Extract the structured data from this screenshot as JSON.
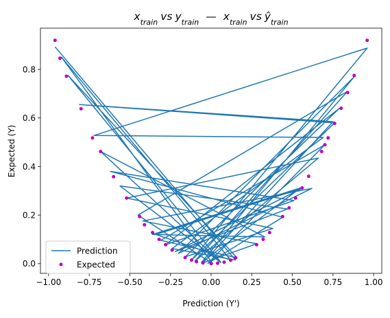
{
  "chart_data": {
    "type": "line",
    "title": "x_train vs y_train — x_train vs ŷ_train",
    "title_parts": {
      "x": "x",
      "train": "train",
      "vs": "vs",
      "y": "y",
      "yhat": "ŷ",
      "sep": "—"
    },
    "xlabel": "Prediction (Y')",
    "ylabel": "Expected (Y)",
    "xlim": [
      -1.05,
      1.05
    ],
    "ylim": [
      -0.04,
      0.97
    ],
    "xticks": [
      -1.0,
      -0.75,
      -0.5,
      -0.25,
      0.0,
      0.25,
      0.5,
      0.75,
      1.0
    ],
    "xtick_labels": [
      "−1.00",
      "−0.75",
      "−0.50",
      "−0.25",
      "0.00",
      "0.25",
      "0.50",
      "0.75",
      "1.00"
    ],
    "yticks": [
      0.0,
      0.2,
      0.4,
      0.6,
      0.8
    ],
    "ytick_labels": [
      "0.0",
      "0.2",
      "0.4",
      "0.6",
      "0.8"
    ],
    "grid": false,
    "legend": {
      "placement": "lower-left",
      "entries": [
        "Prediction",
        "Expected"
      ]
    },
    "series": [
      {
        "name": "Prediction",
        "style": "line",
        "color": "#1f77b4",
        "points": [
          [
            -0.96,
            0.893
          ],
          [
            0.15,
            0.015
          ],
          [
            -0.24,
            0.062
          ],
          [
            0.69,
            0.52
          ],
          [
            -0.72,
            0.528
          ],
          [
            0.96,
            0.888
          ],
          [
            -0.12,
            0.015
          ],
          [
            0.76,
            0.58
          ],
          [
            -0.81,
            0.655
          ],
          [
            0.75,
            0.585
          ],
          [
            -0.05,
            0.003
          ],
          [
            0.28,
            0.082
          ],
          [
            -0.42,
            0.176
          ],
          [
            0.62,
            0.31
          ],
          [
            -0.2,
            0.042
          ],
          [
            0.88,
            0.77
          ],
          [
            -0.06,
            0.004
          ],
          [
            0.55,
            0.312
          ],
          [
            -0.36,
            0.12
          ],
          [
            0.33,
            0.11
          ],
          [
            -0.68,
            0.462
          ],
          [
            0.06,
            0.006
          ],
          [
            -0.88,
            0.775
          ],
          [
            0.16,
            0.024
          ],
          [
            -0.31,
            0.096
          ],
          [
            0.7,
            0.49
          ],
          [
            -0.02,
            0.001
          ],
          [
            0.44,
            0.191
          ],
          [
            -0.62,
            0.38
          ],
          [
            0.51,
            0.26
          ],
          [
            -0.28,
            0.078
          ],
          [
            0.79,
            0.64
          ],
          [
            -0.16,
            0.028
          ],
          [
            0.38,
            0.145
          ],
          [
            -0.52,
            0.27
          ],
          [
            0.66,
            0.435
          ],
          [
            -0.1,
            0.01
          ],
          [
            0.84,
            0.71
          ],
          [
            -0.45,
            0.2
          ],
          [
            0.01,
            0.0
          ],
          [
            -0.92,
            0.85
          ],
          [
            0.12,
            0.015
          ],
          [
            -0.34,
            0.12
          ],
          [
            0.56,
            0.31
          ],
          [
            -0.22,
            0.05
          ],
          [
            0.47,
            0.225
          ],
          [
            -0.56,
            0.32
          ],
          [
            0.06,
            0.004
          ]
        ]
      },
      {
        "name": "Expected",
        "style": "markers",
        "color": "#bf00bf",
        "points": [
          [
            -0.96,
            0.92
          ],
          [
            -0.93,
            0.846
          ],
          [
            -0.89,
            0.772
          ],
          [
            -0.8,
            0.638
          ],
          [
            -0.73,
            0.518
          ],
          [
            -0.68,
            0.462
          ],
          [
            -0.6,
            0.358
          ],
          [
            -0.52,
            0.27
          ],
          [
            -0.44,
            0.194
          ],
          [
            -0.41,
            0.16
          ],
          [
            -0.36,
            0.128
          ],
          [
            -0.32,
            0.1
          ],
          [
            -0.28,
            0.078
          ],
          [
            -0.24,
            0.056
          ],
          [
            -0.16,
            0.025
          ],
          [
            -0.12,
            0.015
          ],
          [
            -0.09,
            0.008
          ],
          [
            -0.05,
            0.003
          ],
          [
            0.0,
            0.0
          ],
          [
            0.04,
            0.002
          ],
          [
            0.08,
            0.006
          ],
          [
            0.12,
            0.014
          ],
          [
            0.15,
            0.024
          ],
          [
            0.28,
            0.078
          ],
          [
            0.32,
            0.1
          ],
          [
            0.36,
            0.128
          ],
          [
            0.44,
            0.194
          ],
          [
            0.48,
            0.23
          ],
          [
            0.52,
            0.27
          ],
          [
            0.56,
            0.312
          ],
          [
            0.6,
            0.36
          ],
          [
            0.68,
            0.462
          ],
          [
            0.7,
            0.49
          ],
          [
            0.72,
            0.518
          ],
          [
            0.76,
            0.578
          ],
          [
            0.8,
            0.64
          ],
          [
            0.84,
            0.705
          ],
          [
            0.88,
            0.775
          ],
          [
            0.96,
            0.92
          ]
        ]
      }
    ]
  }
}
